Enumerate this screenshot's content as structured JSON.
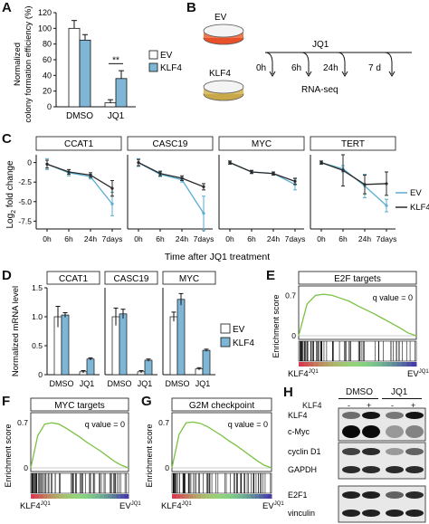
{
  "panels": {
    "A": "A",
    "B": "B",
    "C": "C",
    "D": "D",
    "E": "E",
    "F": "F",
    "G": "G",
    "H": "H"
  },
  "colors": {
    "ev": "#ffffff",
    "klf4": "#7fb6d6",
    "ev_line": "#5aaed0",
    "klf4_line": "#2a2a2a",
    "gsea_line": "#7bc142"
  },
  "chart_data": [
    {
      "panel": "A",
      "type": "bar",
      "categories": [
        "DMSO",
        "JQ1"
      ],
      "ylabel": "Normalized colony formation efficiency (%)",
      "ylim": [
        0,
        120
      ],
      "yticks": [
        "0",
        "20",
        "40",
        "60",
        "80",
        "100",
        "120"
      ],
      "series": [
        {
          "name": "EV",
          "values": [
            100,
            5
          ],
          "errors": [
            10,
            4
          ]
        },
        {
          "name": "KLF4",
          "values": [
            85,
            36
          ],
          "errors": [
            7,
            10
          ]
        }
      ],
      "annotation": "**",
      "legend": "top-right"
    },
    {
      "panel": "C",
      "type": "line",
      "ylabel_main": "Log",
      "ylabel_sub": "2",
      "ylabel_rest": " fold change",
      "xlabel": "Time after JQ1 treatment",
      "x": [
        "0h",
        "6h",
        "24h",
        "7days"
      ],
      "ylim": [
        -8.5,
        1
      ],
      "yticks": [
        "0",
        "-2.5",
        "-5.0",
        "-7.5"
      ],
      "subplots": [
        {
          "title": "CCAT1",
          "series": [
            {
              "name": "EV",
              "values": [
                -0.2,
                -1.3,
                -1.8,
                -5.3
              ],
              "errors": [
                0.7,
                0.4,
                0.3,
                1.5
              ]
            },
            {
              "name": "KLF4",
              "values": [
                -0.2,
                -1.2,
                -1.6,
                -3.3
              ],
              "errors": [
                0.5,
                0.3,
                0.3,
                1.0
              ]
            }
          ]
        },
        {
          "title": "CASC19",
          "series": [
            {
              "name": "EV",
              "values": [
                0,
                -1.5,
                -2.2,
                -6.5
              ],
              "errors": [
                0.5,
                0.3,
                0.3,
                2.2
              ]
            },
            {
              "name": "KLF4",
              "values": [
                0,
                -1.4,
                -2.0,
                -3.1
              ],
              "errors": [
                0.4,
                0.3,
                0.3,
                0.4
              ]
            }
          ]
        },
        {
          "title": "MYC",
          "series": [
            {
              "name": "EV",
              "values": [
                0,
                -1.2,
                -1.4,
                -2.8
              ],
              "errors": [
                0.2,
                0.2,
                0.2,
                0.7
              ]
            },
            {
              "name": "KLF4",
              "values": [
                0,
                -1.2,
                -1.4,
                -2.4
              ],
              "errors": [
                0.2,
                0.2,
                0.2,
                0.4
              ]
            }
          ]
        },
        {
          "title": "TERT",
          "series": [
            {
              "name": "EV",
              "values": [
                0,
                -0.8,
                -3.0,
                -5.5
              ],
              "errors": [
                0.2,
                0.4,
                1.5,
                0.8
              ]
            },
            {
              "name": "KLF4",
              "values": [
                0,
                -1.0,
                -2.8,
                -2.7
              ],
              "errors": [
                0.2,
                2.0,
                1.2,
                1.5
              ]
            }
          ]
        }
      ],
      "legend": [
        "EV",
        "KLF4"
      ]
    },
    {
      "panel": "D",
      "type": "bar",
      "ylabel": "Normalized mRNA level",
      "ylim": [
        0,
        1.5
      ],
      "yticks": [
        "0",
        "0.5",
        "1.0",
        "1.5"
      ],
      "categories": [
        "DMSO",
        "JQ1"
      ],
      "subplots": [
        {
          "title": "CCAT1",
          "series": [
            {
              "name": "EV",
              "values": [
                1.0,
                0.05
              ],
              "errors": [
                0.18,
                0.02
              ]
            },
            {
              "name": "KLF4",
              "values": [
                1.03,
                0.27
              ],
              "errors": [
                0.04,
                0.02
              ]
            }
          ]
        },
        {
          "title": "CASC19",
          "series": [
            {
              "name": "EV",
              "values": [
                1.0,
                0.05
              ],
              "errors": [
                0.15,
                0.02
              ]
            },
            {
              "name": "KLF4",
              "values": [
                1.05,
                0.25
              ],
              "errors": [
                0.08,
                0.02
              ]
            }
          ]
        },
        {
          "title": "MYC",
          "series": [
            {
              "name": "EV",
              "values": [
                1.0,
                0.1
              ],
              "errors": [
                0.08,
                0.02
              ]
            },
            {
              "name": "KLF4",
              "values": [
                1.3,
                0.42
              ],
              "errors": [
                0.1,
                0.02
              ]
            }
          ]
        }
      ],
      "legend": [
        "EV",
        "KLF4"
      ]
    }
  ],
  "panelB": {
    "ev_label": "EV",
    "klf4_label": "KLF4",
    "jq1_label": "JQ1",
    "timepoints": [
      "0h",
      "6h",
      "24h",
      "7 d"
    ],
    "rnaseq_label": "RNA-seq",
    "ev_dish_color": "#e8502a",
    "klf4_dish_color": "#c9a84a"
  },
  "gsea": {
    "E": {
      "title": "E2F targets",
      "qvalue": "q value = 0",
      "ylabel": "Enrichment score",
      "ytick_top": "0.7",
      "ytick_zero": "0",
      "left_label": "KLF4",
      "left_sup": "JQ1",
      "right_label": "EV",
      "right_sup": "JQ1",
      "es_curve": [
        0,
        0.55,
        0.7,
        0.72,
        0.7,
        0.65,
        0.6,
        0.52,
        0.45,
        0.38,
        0.3,
        0.22,
        0.14,
        0.05,
        0
      ]
    },
    "F": {
      "title": "MYC targets",
      "qvalue": "q value = 0",
      "ylabel": "Enrichment score",
      "ytick_top": "0.7",
      "ytick_zero": "0",
      "left_label": "KLF4",
      "left_sup": "JQ1",
      "right_label": "EV",
      "right_sup": "JQ1",
      "es_curve": [
        0,
        0.5,
        0.68,
        0.7,
        0.68,
        0.62,
        0.55,
        0.48,
        0.4,
        0.33,
        0.26,
        0.18,
        0.1,
        0.04,
        0
      ]
    },
    "G": {
      "title": "G2M checkpoint",
      "qvalue": "q value = 0",
      "ylabel": "Enrichment score",
      "ytick_top": "0.7",
      "ytick_zero": "0",
      "left_label": "KLF4",
      "left_sup": "JQ1",
      "right_label": "EV",
      "right_sup": "JQ1",
      "es_curve": [
        0,
        0.52,
        0.7,
        0.71,
        0.69,
        0.64,
        0.57,
        0.5,
        0.42,
        0.35,
        0.27,
        0.19,
        0.11,
        0.04,
        0
      ]
    }
  },
  "western": {
    "group_labels": [
      "DMSO",
      "JQ1"
    ],
    "klf4_header": "KLF4",
    "signs": [
      "-",
      "+",
      "-",
      "+"
    ],
    "rows": [
      "KLF4",
      "c-Myc",
      "cyclin D1",
      "GAPDH",
      "E2F1",
      "vinculin"
    ]
  }
}
